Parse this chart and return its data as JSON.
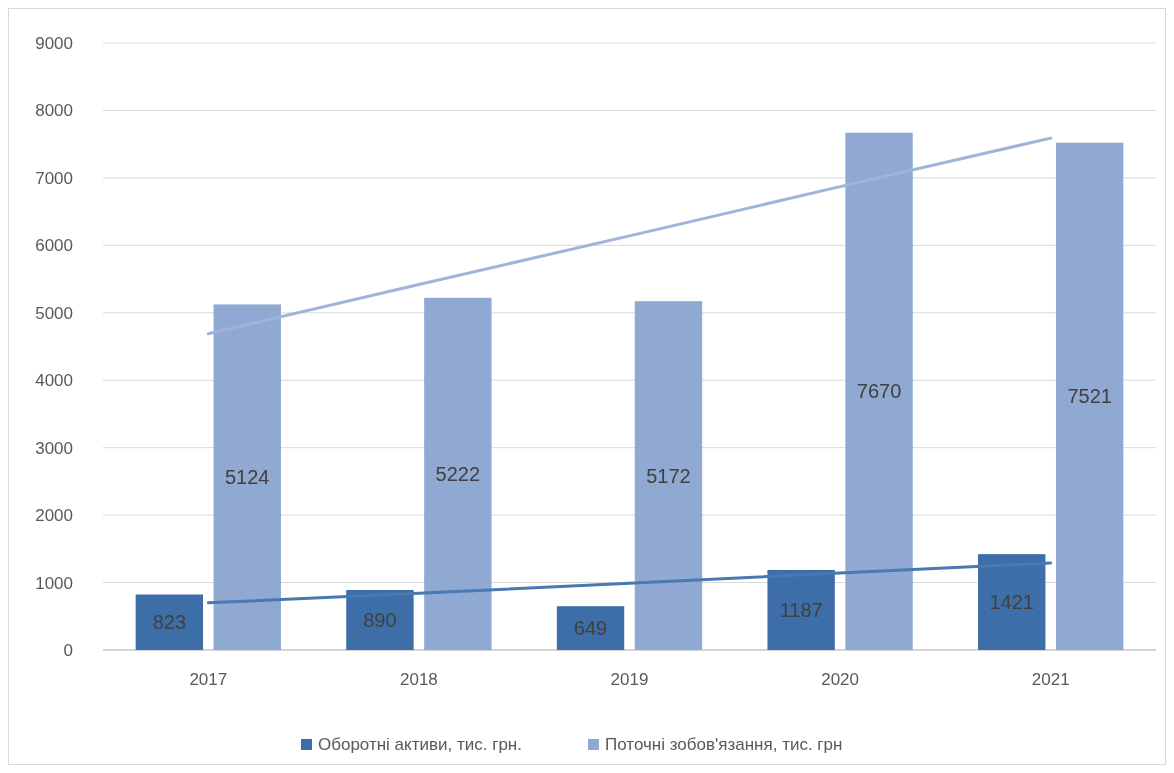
{
  "chart_data": {
    "type": "bar",
    "categories": [
      "2017",
      "2018",
      "2019",
      "2020",
      "2021"
    ],
    "series": [
      {
        "name": "Оборотні активи, тис. грн.",
        "color": "#3d6ea8",
        "values": [
          823,
          890,
          649,
          1187,
          1421
        ],
        "value_labels": [
          "823",
          "890",
          "649",
          "1187",
          "1421"
        ]
      },
      {
        "name": "Поточні зобов'язання, тис. грн",
        "color": "#8fa9d2",
        "values": [
          5124,
          5222,
          5172,
          7670,
          7521
        ],
        "value_labels": [
          "5124",
          "5222",
          "5172",
          "7670",
          "7521"
        ]
      },
      {
        "type": "line",
        "color": "#4a78b0",
        "values": [
          700,
          840,
          990,
          1140,
          1290
        ]
      },
      {
        "type": "line",
        "color": "#9fb4d8",
        "values": [
          4690,
          5420,
          6140,
          6870,
          7590
        ]
      }
    ],
    "ylim": [
      0,
      9000
    ],
    "yticks": [
      0,
      1000,
      2000,
      3000,
      4000,
      5000,
      6000,
      7000,
      8000,
      9000
    ],
    "grid": "y",
    "legend": "bottom"
  }
}
